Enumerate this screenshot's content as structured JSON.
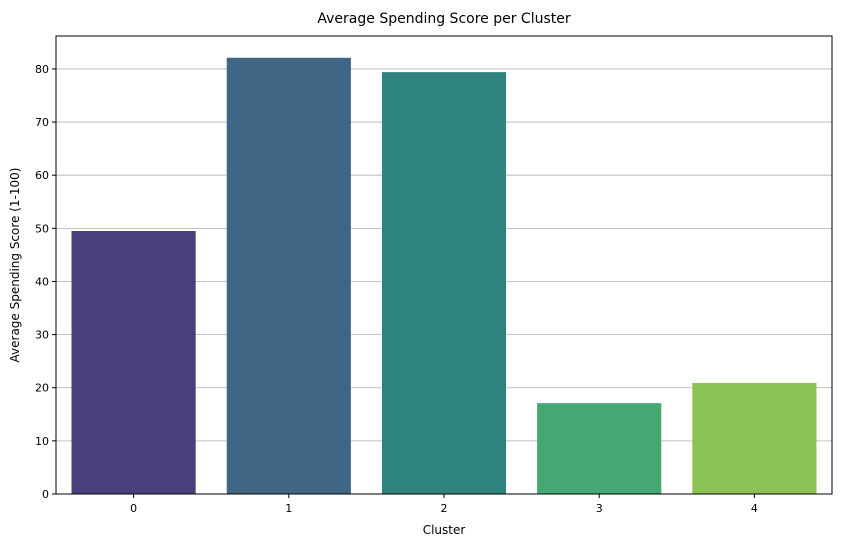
{
  "chart_data": {
    "type": "bar",
    "title": "Average Spending Score per Cluster",
    "xlabel": "Cluster",
    "ylabel": "Average Spending Score (1-100)",
    "categories": [
      "0",
      "1",
      "2",
      "3",
      "4"
    ],
    "values": [
      49.5,
      82.1,
      79.4,
      17.1,
      20.9
    ],
    "ylim": [
      0,
      86.2
    ],
    "yticks": [
      0,
      10,
      20,
      30,
      40,
      50,
      60,
      70,
      80
    ],
    "ytick_labels": [
      "0",
      "10",
      "20",
      "30",
      "40",
      "50",
      "60",
      "70",
      "80"
    ],
    "grid": "y",
    "colors": [
      "#4a3f7a",
      "#3f6785",
      "#2f847d",
      "#45a772",
      "#8bc355"
    ]
  }
}
